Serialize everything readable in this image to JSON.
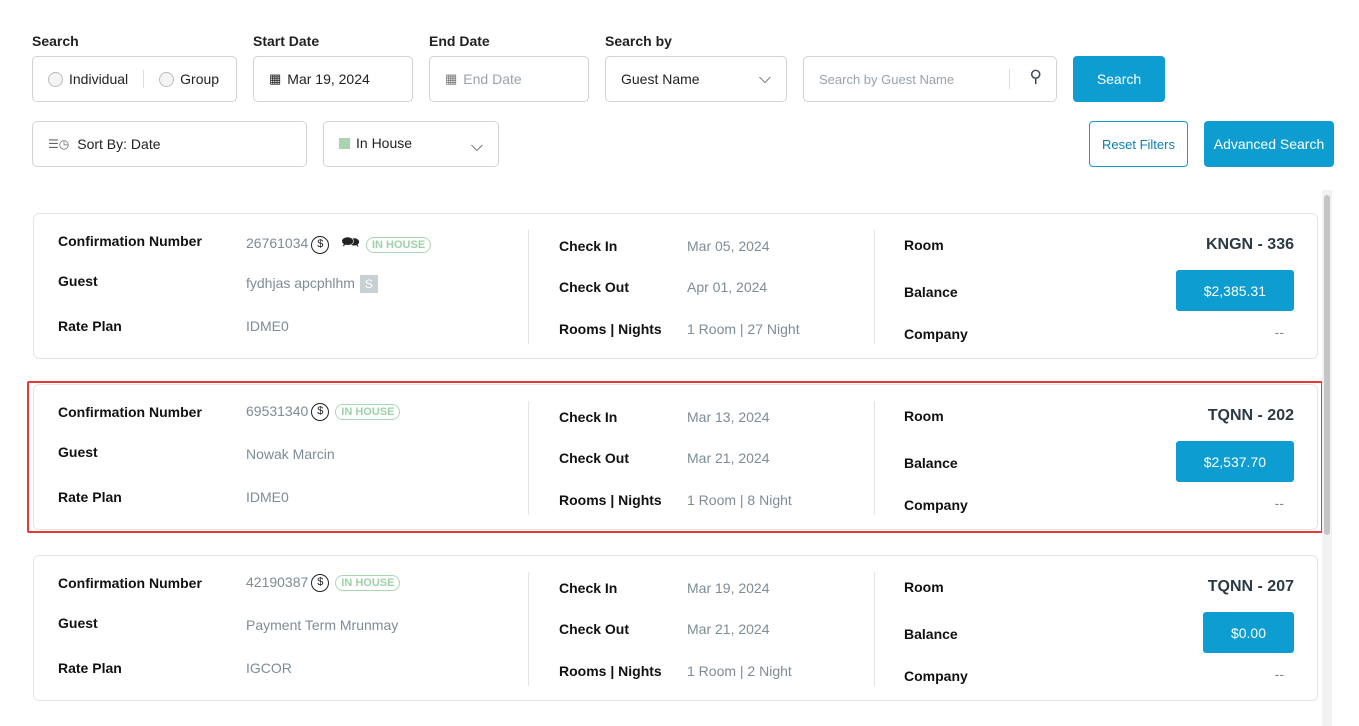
{
  "filters": {
    "search_label": "Search",
    "individual": "Individual",
    "group": "Group",
    "start_date_label": "Start Date",
    "start_date_value": "Mar 19, 2024",
    "end_date_label": "End Date",
    "end_date_placeholder": "End Date",
    "search_by_label": "Search by",
    "search_by_value": "Guest Name",
    "search_placeholder": "Search by Guest Name",
    "search_button": "Search",
    "sort_label": "Sort By: Date",
    "status_value": "In House",
    "status_color": "#a8d5b0",
    "reset_button": "Reset Filters",
    "advanced_button": "Advanced Search"
  },
  "labels": {
    "confirmation": "Confirmation Number",
    "guest": "Guest",
    "rate_plan": "Rate Plan",
    "check_in": "Check In",
    "check_out": "Check Out",
    "rooms_nights": "Rooms | Nights",
    "room": "Room",
    "balance": "Balance",
    "company": "Company"
  },
  "reservations": [
    {
      "confirmation": "26761034",
      "status": "IN HOUSE",
      "guest": "fydhjas apcphlhm",
      "rate_plan": "IDME0",
      "check_in": "Mar 05, 2024",
      "check_out": "Apr 01, 2024",
      "rooms_nights": "1 Room | 27 Night",
      "room": "KNGN - 336",
      "balance": "$2,385.31",
      "company": "--"
    },
    {
      "confirmation": "69531340",
      "status": "IN HOUSE",
      "guest": "Nowak Marcin",
      "rate_plan": "IDME0",
      "check_in": "Mar 13, 2024",
      "check_out": "Mar 21, 2024",
      "rooms_nights": "1 Room | 8 Night",
      "room": "TQNN - 202",
      "balance": "$2,537.70",
      "company": "--"
    },
    {
      "confirmation": "42190387",
      "status": "IN HOUSE",
      "guest": "Payment Term Mrunmay",
      "rate_plan": "IGCOR",
      "check_in": "Mar 19, 2024",
      "check_out": "Mar 21, 2024",
      "rooms_nights": "1 Room | 2 Night",
      "room": "TQNN - 207",
      "balance": "$0.00",
      "company": "--"
    }
  ]
}
